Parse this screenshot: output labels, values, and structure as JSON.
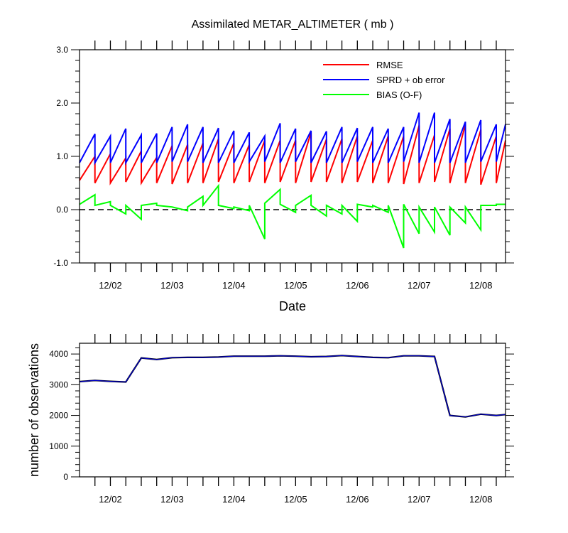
{
  "chart_data": [
    {
      "type": "line",
      "title": "Assimilated METAR_ALTIMETER ( mb )",
      "xlabel": "Date",
      "ylabel": "",
      "xlim": [
        0,
        6.9
      ],
      "ylim": [
        -1.0,
        3.0
      ],
      "yticks": [
        -1.0,
        0.0,
        1.0,
        2.0,
        3.0
      ],
      "ytick_labels": [
        "-1.0",
        "0.0",
        "1.0",
        "2.0",
        "3.0"
      ],
      "xtick_values": [
        0.5,
        1.5,
        2.5,
        3.5,
        4.5,
        5.5,
        6.5
      ],
      "xtick_labels": [
        "12/02",
        "12/03",
        "12/04",
        "12/05",
        "12/06",
        "12/07",
        "12/08"
      ],
      "reference_line": 0.0,
      "legend_position": "top-right",
      "series": [
        {
          "name": "RMSE",
          "color": "#ff0000",
          "pairs": [
            [
              0.55,
              1.0
            ],
            [
              0.5,
              1.05
            ],
            [
              0.5,
              0.97
            ],
            [
              0.52,
              1.1
            ],
            [
              0.5,
              0.98
            ],
            [
              0.5,
              1.2
            ],
            [
              0.48,
              1.22
            ],
            [
              0.5,
              1.25
            ],
            [
              0.5,
              1.33
            ],
            [
              0.52,
              1.25
            ],
            [
              0.5,
              1.22
            ],
            [
              0.52,
              1.3
            ],
            [
              0.5,
              1.3
            ],
            [
              0.52,
              1.3
            ],
            [
              0.5,
              1.45
            ],
            [
              0.52,
              1.32
            ],
            [
              0.52,
              1.33
            ],
            [
              0.5,
              1.38
            ],
            [
              0.52,
              1.3
            ],
            [
              0.5,
              1.38
            ],
            [
              0.5,
              1.38
            ],
            [
              0.48,
              1.58
            ],
            [
              0.5,
              1.4
            ],
            [
              0.52,
              1.52
            ],
            [
              0.5,
              1.6
            ],
            [
              0.5,
              1.5
            ],
            [
              0.47,
              1.38
            ],
            [
              0.5,
              1.3
            ]
          ]
        },
        {
          "name": "SPRD + ob error",
          "color": "#0000ff",
          "pairs": [
            [
              0.88,
              1.42
            ],
            [
              0.88,
              1.38
            ],
            [
              0.88,
              1.52
            ],
            [
              0.88,
              1.4
            ],
            [
              0.88,
              1.43
            ],
            [
              0.88,
              1.55
            ],
            [
              0.9,
              1.6
            ],
            [
              0.9,
              1.55
            ],
            [
              0.88,
              1.53
            ],
            [
              0.88,
              1.48
            ],
            [
              0.88,
              1.45
            ],
            [
              0.9,
              1.38
            ],
            [
              0.9,
              1.62
            ],
            [
              0.88,
              1.52
            ],
            [
              0.9,
              1.48
            ],
            [
              0.88,
              1.47
            ],
            [
              0.88,
              1.55
            ],
            [
              0.88,
              1.53
            ],
            [
              0.9,
              1.55
            ],
            [
              0.88,
              1.52
            ],
            [
              0.88,
              1.55
            ],
            [
              0.9,
              1.82
            ],
            [
              0.88,
              1.82
            ],
            [
              0.88,
              1.7
            ],
            [
              0.88,
              1.65
            ],
            [
              0.88,
              1.68
            ],
            [
              0.9,
              1.6
            ],
            [
              0.9,
              1.6
            ]
          ]
        },
        {
          "name": "BIAS (O-F)",
          "color": "#00ff00",
          "pairs": [
            [
              0.1,
              0.28
            ],
            [
              0.08,
              0.15
            ],
            [
              0.08,
              -0.08
            ],
            [
              0.08,
              -0.18
            ],
            [
              0.08,
              0.12
            ],
            [
              0.08,
              0.05
            ],
            [
              0.05,
              -0.02
            ],
            [
              0.05,
              0.25
            ],
            [
              0.08,
              0.45
            ],
            [
              0.08,
              0.02
            ],
            [
              0.05,
              -0.02
            ],
            [
              0.08,
              -0.55
            ],
            [
              0.12,
              0.38
            ],
            [
              0.1,
              -0.05
            ],
            [
              0.08,
              0.27
            ],
            [
              0.08,
              -0.12
            ],
            [
              0.08,
              -0.08
            ],
            [
              0.08,
              -0.22
            ],
            [
              0.1,
              0.05
            ],
            [
              0.08,
              -0.05
            ],
            [
              0.08,
              -0.72
            ],
            [
              0.1,
              -0.45
            ],
            [
              0.05,
              -0.42
            ],
            [
              0.05,
              -0.48
            ],
            [
              0.05,
              -0.25
            ],
            [
              0.05,
              -0.38
            ],
            [
              0.08,
              0.08
            ],
            [
              0.1,
              0.1
            ]
          ]
        }
      ]
    },
    {
      "type": "line",
      "title": "",
      "xlabel": "",
      "ylabel": "number of observations",
      "xlim": [
        0,
        6.9
      ],
      "ylim": [
        0,
        4350
      ],
      "yticks": [
        0,
        1000,
        2000,
        3000,
        4000
      ],
      "ytick_labels": [
        "0",
        "1000",
        "2000",
        "3000",
        "4000"
      ],
      "xtick_values": [
        0.5,
        1.5,
        2.5,
        3.5,
        4.5,
        5.5,
        6.5
      ],
      "xtick_labels": [
        "12/02",
        "12/03",
        "12/04",
        "12/05",
        "12/06",
        "12/07",
        "12/08"
      ],
      "legend_position": "none",
      "series": [
        {
          "name": "number of observations",
          "color": "#000000",
          "overlay_color": "#0000cc",
          "x": [
            0.0,
            0.25,
            0.5,
            0.75,
            1.0,
            1.25,
            1.5,
            1.75,
            2.0,
            2.25,
            2.5,
            2.75,
            3.0,
            3.25,
            3.5,
            3.75,
            4.0,
            4.25,
            4.5,
            4.75,
            5.0,
            5.25,
            5.5,
            5.75,
            6.0,
            6.25,
            6.5,
            6.75,
            6.9
          ],
          "values": [
            3100,
            3140,
            3110,
            3090,
            3870,
            3820,
            3880,
            3890,
            3890,
            3900,
            3930,
            3930,
            3930,
            3940,
            3930,
            3910,
            3920,
            3950,
            3920,
            3890,
            3880,
            3940,
            3940,
            3920,
            2000,
            1950,
            2040,
            2000,
            2030
          ]
        }
      ]
    }
  ]
}
